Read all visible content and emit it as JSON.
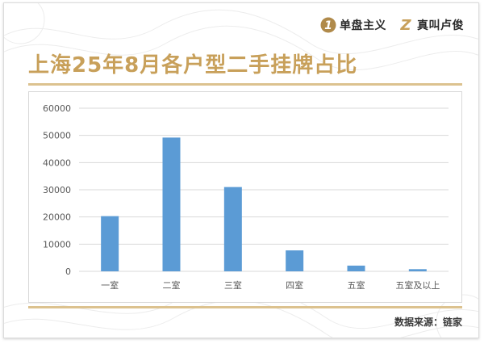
{
  "header": {
    "brands": [
      {
        "logo_glyph": "1",
        "name": "单盘主义",
        "logo_color": "#b08a4a"
      },
      {
        "logo_glyph": "Z",
        "name": "真叫卢俊",
        "logo_color": "#c8a05a"
      }
    ]
  },
  "title": "上海25年8月各户型二手挂牌占比",
  "source_text": "数据来源：链家",
  "colors": {
    "accent": "#c8a05a",
    "bar": "#5b9bd5",
    "grid": "#d9d9d9",
    "axis_text": "#595959"
  },
  "chart_data": {
    "type": "bar",
    "title": "",
    "xlabel": "",
    "ylabel": "",
    "categories": [
      "一室",
      "二室",
      "三室",
      "四室",
      "五室",
      "五室及以上"
    ],
    "values": [
      20300,
      49200,
      31000,
      7700,
      2100,
      800
    ],
    "ylim": [
      0,
      60000
    ],
    "yticks": [
      "0",
      "10000",
      "20000",
      "30000",
      "40000",
      "50000",
      "60000"
    ],
    "grid": true,
    "legend": "none"
  }
}
